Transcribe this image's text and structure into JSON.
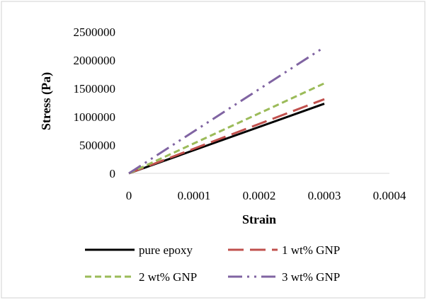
{
  "chart_data": {
    "type": "line",
    "xlabel": "Strain",
    "ylabel": "Stress (Pa)",
    "xlim": [
      0,
      0.0004
    ],
    "ylim": [
      0,
      2500000
    ],
    "x_ticks": [
      "0",
      "0.0001",
      "0.0002",
      "0.0003",
      "0.0004"
    ],
    "y_ticks": [
      "0",
      "500000",
      "1000000",
      "1500000",
      "2000000",
      "2500000"
    ],
    "grid": false,
    "legend_position": "bottom",
    "series": [
      {
        "name": "pure epoxy",
        "x": [
          0,
          0.0003
        ],
        "y": [
          0,
          1230000
        ],
        "color": "#000000",
        "dash": "solid"
      },
      {
        "name": "1 wt% GNP",
        "x": [
          0,
          0.0003
        ],
        "y": [
          0,
          1310000
        ],
        "color": "#c0504d",
        "dash": "long-dash"
      },
      {
        "name": "2 wt% GNP",
        "x": [
          0,
          0.0003
        ],
        "y": [
          0,
          1590000
        ],
        "color": "#9bbb59",
        "dash": "dash"
      },
      {
        "name": "3 wt% GNP",
        "x": [
          0,
          0.0003
        ],
        "y": [
          0,
          2230000
        ],
        "color": "#8064a2",
        "dash": "dash-dot-dot"
      }
    ]
  }
}
